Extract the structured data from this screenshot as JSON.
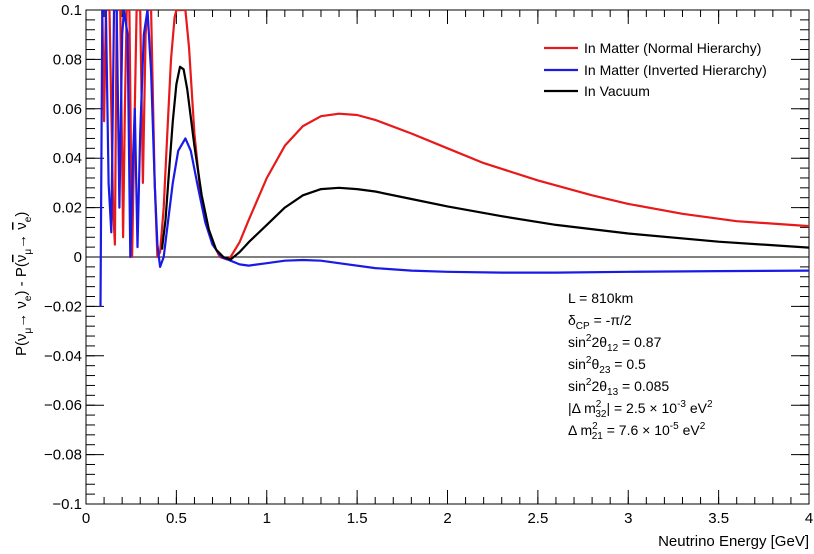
{
  "chart_data": {
    "type": "line",
    "title": "",
    "xlabel": "Neutrino Energy [GeV]",
    "ylabel_parts": {
      "p1": "P(ν",
      "s1": "μ",
      "p2": "→ ν",
      "s2": "e",
      "p3": ") - P(",
      "p4": "ν",
      "s3": "μ",
      "p5": "→ ",
      "p6": "ν",
      "s4": "e",
      "p7": ")"
    },
    "xlim": [
      0,
      4
    ],
    "ylim": [
      -0.1,
      0.1
    ],
    "x_ticks": [
      {
        "v": 0,
        "label": "0"
      },
      {
        "v": 0.5,
        "label": "0.5"
      },
      {
        "v": 1,
        "label": "1"
      },
      {
        "v": 1.5,
        "label": "1.5"
      },
      {
        "v": 2,
        "label": "2"
      },
      {
        "v": 2.5,
        "label": "2.5"
      },
      {
        "v": 3,
        "label": "3"
      },
      {
        "v": 3.5,
        "label": "3.5"
      },
      {
        "v": 4,
        "label": "4"
      }
    ],
    "y_ticks": [
      {
        "v": 0.1,
        "label": "0.1"
      },
      {
        "v": 0.08,
        "label": "0.08"
      },
      {
        "v": 0.06,
        "label": "0.06"
      },
      {
        "v": 0.04,
        "label": "0.04"
      },
      {
        "v": 0.02,
        "label": "0.02"
      },
      {
        "v": 0,
        "label": "0"
      },
      {
        "v": -0.02,
        "label": "−0.02"
      },
      {
        "v": -0.04,
        "label": "−0.04"
      },
      {
        "v": -0.06,
        "label": "−0.06"
      },
      {
        "v": -0.08,
        "label": "−0.08"
      },
      {
        "v": -0.1,
        "label": "−0.1"
      }
    ],
    "grid": false,
    "legend_position": "top-right",
    "series": [
      {
        "name": "In Matter (Normal Hierarchy)",
        "color": "#e8191b",
        "points": [
          [
            0.09,
            0.1
          ],
          [
            0.1,
            0.055
          ],
          [
            0.11,
            0.1
          ],
          [
            0.13,
            0.1
          ],
          [
            0.15,
            0.02
          ],
          [
            0.16,
            0.005
          ],
          [
            0.17,
            0.1
          ],
          [
            0.19,
            0.1
          ],
          [
            0.205,
            0.008
          ],
          [
            0.215,
            0.06
          ],
          [
            0.225,
            0.1
          ],
          [
            0.24,
            0.1
          ],
          [
            0.255,
            0.0
          ],
          [
            0.27,
            0.06
          ],
          [
            0.28,
            0.1
          ],
          [
            0.3,
            0.1
          ],
          [
            0.315,
            0.03
          ],
          [
            0.33,
            0.09
          ],
          [
            0.34,
            0.1
          ],
          [
            0.36,
            0.1
          ],
          [
            0.38,
            0.03
          ],
          [
            0.395,
            0.0
          ],
          [
            0.41,
            0.002
          ],
          [
            0.43,
            0.02
          ],
          [
            0.45,
            0.05
          ],
          [
            0.47,
            0.08
          ],
          [
            0.49,
            0.097
          ],
          [
            0.5,
            0.1
          ],
          [
            0.55,
            0.1
          ],
          [
            0.57,
            0.085
          ],
          [
            0.6,
            0.05
          ],
          [
            0.63,
            0.028
          ],
          [
            0.66,
            0.015
          ],
          [
            0.7,
            0.006
          ],
          [
            0.74,
            0.0
          ],
          [
            0.78,
            -0.001
          ],
          [
            0.8,
            0.0
          ],
          [
            0.85,
            0.006
          ],
          [
            0.9,
            0.015
          ],
          [
            1.0,
            0.032
          ],
          [
            1.1,
            0.045
          ],
          [
            1.2,
            0.053
          ],
          [
            1.3,
            0.057
          ],
          [
            1.4,
            0.058
          ],
          [
            1.5,
            0.0575
          ],
          [
            1.6,
            0.0555
          ],
          [
            1.8,
            0.05
          ],
          [
            2.0,
            0.044
          ],
          [
            2.2,
            0.038
          ],
          [
            2.5,
            0.031
          ],
          [
            2.8,
            0.025
          ],
          [
            3.0,
            0.0215
          ],
          [
            3.3,
            0.0175
          ],
          [
            3.6,
            0.0145
          ],
          [
            4.0,
            0.0125
          ]
        ]
      },
      {
        "name": "In Matter (Inverted Hierarchy)",
        "color": "#1a1ae6",
        "points": [
          [
            0.08,
            -0.02
          ],
          [
            0.09,
            0.1
          ],
          [
            0.11,
            0.1
          ],
          [
            0.125,
            0.03
          ],
          [
            0.14,
            0.01
          ],
          [
            0.155,
            0.1
          ],
          [
            0.17,
            0.1
          ],
          [
            0.185,
            0.02
          ],
          [
            0.2,
            0.09
          ],
          [
            0.21,
            0.1
          ],
          [
            0.23,
            0.09
          ],
          [
            0.245,
            0.0
          ],
          [
            0.26,
            0.04
          ],
          [
            0.27,
            0.06
          ],
          [
            0.285,
            0.004
          ],
          [
            0.3,
            0.05
          ],
          [
            0.32,
            0.09
          ],
          [
            0.34,
            0.1
          ],
          [
            0.36,
            0.075
          ],
          [
            0.38,
            0.03
          ],
          [
            0.395,
            0.005
          ],
          [
            0.41,
            -0.004
          ],
          [
            0.43,
            0.0
          ],
          [
            0.45,
            0.012
          ],
          [
            0.48,
            0.03
          ],
          [
            0.51,
            0.043
          ],
          [
            0.55,
            0.048
          ],
          [
            0.58,
            0.043
          ],
          [
            0.62,
            0.028
          ],
          [
            0.66,
            0.014
          ],
          [
            0.7,
            0.005
          ],
          [
            0.75,
            0.0
          ],
          [
            0.8,
            -0.0015
          ],
          [
            0.85,
            -0.003
          ],
          [
            0.9,
            -0.0035
          ],
          [
            1.0,
            -0.0025
          ],
          [
            1.1,
            -0.0015
          ],
          [
            1.2,
            -0.0012
          ],
          [
            1.3,
            -0.0015
          ],
          [
            1.4,
            -0.0025
          ],
          [
            1.6,
            -0.0045
          ],
          [
            1.8,
            -0.0055
          ],
          [
            2.0,
            -0.006
          ],
          [
            2.3,
            -0.0063
          ],
          [
            2.6,
            -0.0063
          ],
          [
            3.0,
            -0.006
          ],
          [
            3.5,
            -0.0057
          ],
          [
            4.0,
            -0.0055
          ]
        ]
      },
      {
        "name": "In Vacuum",
        "color": "#000000",
        "points": [
          [
            0.42,
            0.003
          ],
          [
            0.44,
            0.015
          ],
          [
            0.46,
            0.035
          ],
          [
            0.48,
            0.055
          ],
          [
            0.5,
            0.07
          ],
          [
            0.52,
            0.077
          ],
          [
            0.54,
            0.076
          ],
          [
            0.56,
            0.068
          ],
          [
            0.6,
            0.045
          ],
          [
            0.64,
            0.025
          ],
          [
            0.68,
            0.011
          ],
          [
            0.72,
            0.003
          ],
          [
            0.76,
            0.0
          ],
          [
            0.8,
            -0.001
          ],
          [
            0.85,
            0.002
          ],
          [
            0.9,
            0.006
          ],
          [
            1.0,
            0.013
          ],
          [
            1.1,
            0.02
          ],
          [
            1.2,
            0.025
          ],
          [
            1.3,
            0.0275
          ],
          [
            1.4,
            0.028
          ],
          [
            1.5,
            0.0275
          ],
          [
            1.6,
            0.0265
          ],
          [
            1.8,
            0.0235
          ],
          [
            2.0,
            0.0205
          ],
          [
            2.3,
            0.0165
          ],
          [
            2.6,
            0.013
          ],
          [
            3.0,
            0.0095
          ],
          [
            3.5,
            0.0062
          ],
          [
            4.0,
            0.0038
          ]
        ]
      }
    ],
    "zero_line": true
  },
  "parameters": {
    "l": "L = 810km",
    "dcp": {
      "a": "δ",
      "sub": "CP",
      "b": " = -π/2"
    },
    "s12": {
      "a": "sin",
      "sup": "2",
      "b": "2θ",
      "sub": "12",
      "c": " = 0.87"
    },
    "s23": {
      "a": "sin",
      "sup": "2",
      "b": "θ",
      "sub": "23",
      "c": " = 0.5"
    },
    "s13": {
      "a": "sin",
      "sup": "2",
      "b": "2θ",
      "sub": "13",
      "c": " = 0.085"
    },
    "dm32": {
      "a": "|Δ m",
      "sup1": "2",
      "sub1": "32",
      "b": "| = 2.5 × 10",
      "sup2": "-3",
      "c": " eV",
      "sup3": "2"
    },
    "dm21": {
      "a": "Δ m",
      "sup1": "2",
      "sub1": "21",
      "b": " = 7.6 × 10",
      "sup2": "-5",
      "c": " eV",
      "sup3": "2"
    }
  }
}
